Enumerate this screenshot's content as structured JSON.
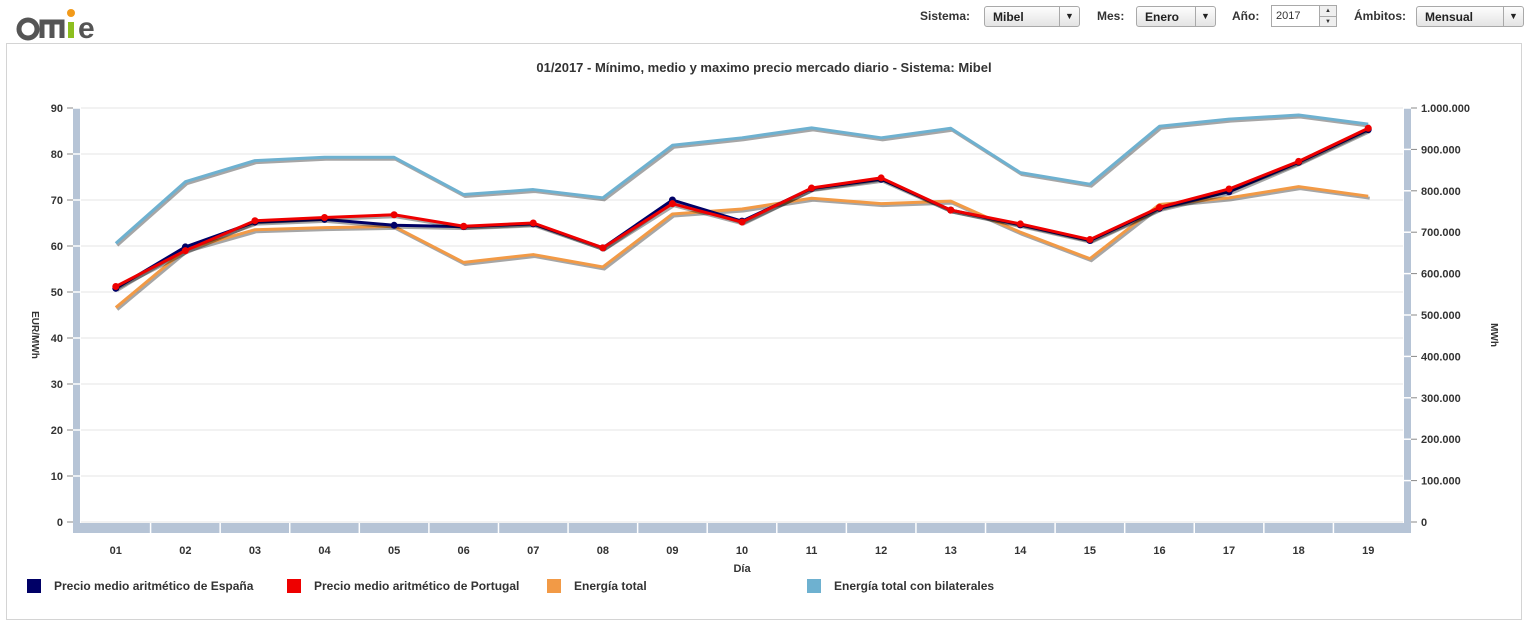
{
  "logo": {
    "text": "omie"
  },
  "controls": {
    "sistema": {
      "label": "Sistema:",
      "value": "Mibel"
    },
    "mes": {
      "label": "Mes:",
      "value": "Enero"
    },
    "anio": {
      "label": "Año:",
      "value": "2017"
    },
    "ambitos": {
      "label": "Ámbitos:",
      "value": "Mensual"
    }
  },
  "colors": {
    "espana": "#000066",
    "portugal": "#ee0000",
    "energia": "#f29a46",
    "bilaterales": "#6eb1d0",
    "axis_band": "#b6c4d6",
    "grid": "#e6e6e6"
  },
  "chart_data": {
    "type": "line",
    "title": "01/2017 - Mínimo, medio y maximo precio mercado diario - Sistema: Mibel",
    "xlabel": "Día",
    "ylabel": "EUR/MWh",
    "y2label": "MWh",
    "categories": [
      "01",
      "02",
      "03",
      "04",
      "05",
      "06",
      "07",
      "08",
      "09",
      "10",
      "11",
      "12",
      "13",
      "14",
      "15",
      "16",
      "17",
      "18",
      "19"
    ],
    "ylim": [
      0,
      90
    ],
    "y2lim": [
      0,
      1000000
    ],
    "yticks": [
      "0",
      "10",
      "20",
      "30",
      "40",
      "50",
      "60",
      "70",
      "80",
      "90"
    ],
    "y2ticks": [
      "0",
      "100.000",
      "200.000",
      "300.000",
      "400.000",
      "500.000",
      "600.000",
      "700.000",
      "800.000",
      "900.000",
      "1.000.000"
    ],
    "grid": true,
    "legend_position": "bottom",
    "series": [
      {
        "name": "Precio medio aritmético de España",
        "axis": "left",
        "markers": true,
        "color": "#000066",
        "values": [
          50.8,
          59.8,
          65.2,
          65.8,
          64.5,
          64.2,
          64.8,
          59.6,
          70.0,
          65.4,
          72.5,
          74.5,
          67.8,
          64.6,
          61.2,
          68.2,
          71.8,
          78.2,
          85.3
        ]
      },
      {
        "name": "Precio medio aritmético de Portugal",
        "axis": "left",
        "markers": true,
        "color": "#ee0000",
        "values": [
          51.2,
          59.0,
          65.5,
          66.2,
          66.8,
          64.3,
          65.0,
          59.6,
          69.2,
          65.2,
          72.6,
          74.8,
          67.8,
          64.8,
          61.4,
          68.4,
          72.4,
          78.4,
          85.6
        ]
      },
      {
        "name": "Energía total",
        "axis": "right",
        "markers": false,
        "color": "#f29a46",
        "values": [
          518000,
          658000,
          706000,
          711000,
          714000,
          627000,
          646000,
          616000,
          744000,
          756000,
          782000,
          769000,
          775000,
          700000,
          636000,
          767000,
          783000,
          810000,
          787000
        ]
      },
      {
        "name": "Energía total con bilaterales",
        "axis": "right",
        "markers": false,
        "color": "#6eb1d0",
        "values": [
          673000,
          822000,
          873000,
          881000,
          881000,
          791000,
          803000,
          783000,
          910000,
          928000,
          952000,
          928000,
          951000,
          844000,
          816000,
          956000,
          973000,
          983000,
          961000
        ]
      }
    ]
  }
}
